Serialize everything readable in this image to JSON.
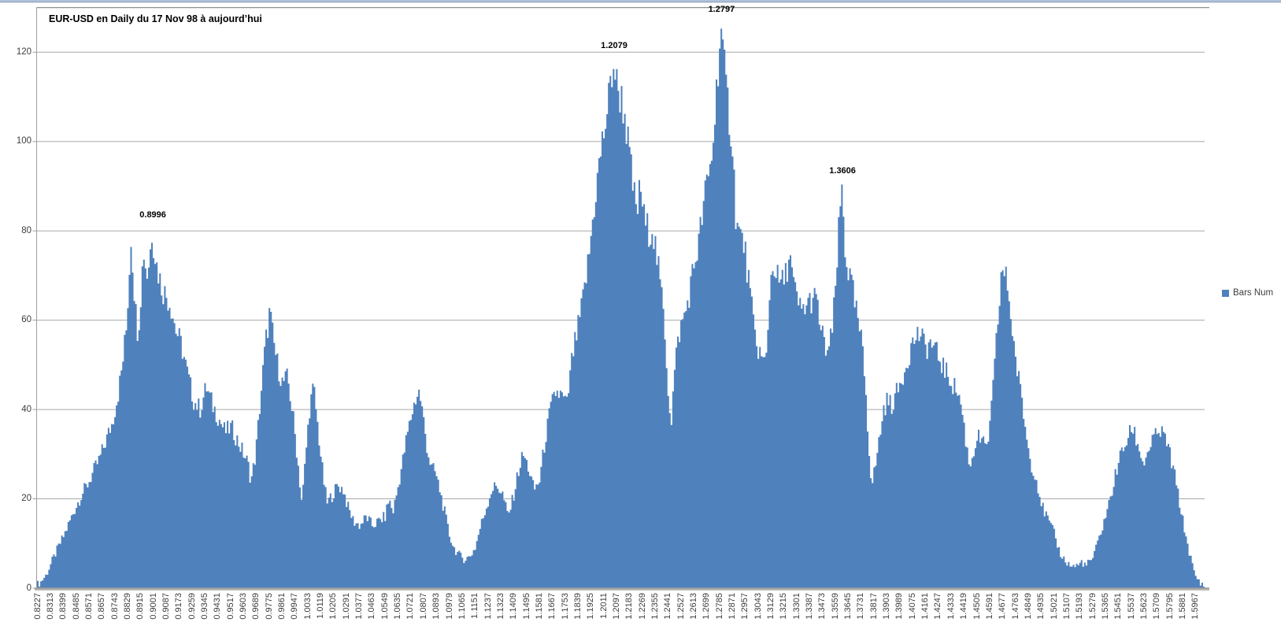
{
  "colors": {
    "bar": "#4F81BD",
    "gridline": "#A8A8A8",
    "axis": "#9E9E9E",
    "axis_shadow": "#C6C6C6",
    "plot_border_top": "#8E8E8E",
    "window_strip": "#AFC2DB",
    "window_strip_line": "#8699B1",
    "tick_text": "#3E3E3E",
    "annotation_text": "#000000"
  },
  "legend": {
    "label": "Bars Num",
    "position": "right",
    "marker_color": "#4F81BD"
  },
  "chart_data": {
    "type": "bar",
    "subtype": "histogram-frequency",
    "title": "EUR-USD en Daily du 17 Nov 98 à aujourd’hui",
    "series_name": "Bars Num",
    "xlabel": "",
    "ylabel": "",
    "grid": "horizontal",
    "legend_position": "right",
    "y_ticks": [
      0,
      20,
      40,
      60,
      80,
      100,
      120
    ],
    "ylim": [
      0,
      130
    ],
    "x_first_bin": 0.8227,
    "x_last_label": 1.5967,
    "x_label_step": 0.0086,
    "bin_width": 0.001075,
    "n_bins": 726,
    "annotations": [
      {
        "text": "0.8996",
        "rate": 0.8996,
        "value": 80
      },
      {
        "text": "1.2079",
        "rate": 1.2079,
        "value": 118
      },
      {
        "text": "1.2797",
        "rate": 1.2797,
        "value": 126
      },
      {
        "text": "1.3606",
        "rate": 1.3606,
        "value": 90
      }
    ],
    "x_tick_labels": [
      "0.8227",
      "0.8313",
      "0.8399",
      "0.8485",
      "0.8571",
      "0.8657",
      "0.8743",
      "0.8829",
      "0.8915",
      "0.9001",
      "0.9087",
      "0.9173",
      "0.9259",
      "0.9345",
      "0.9431",
      "0.9517",
      "0.9603",
      "0.9689",
      "0.9775",
      "0.9861",
      "0.9947",
      "1.0033",
      "1.0119",
      "1.0205",
      "1.0291",
      "1.0377",
      "1.0463",
      "1.0549",
      "1.0635",
      "1.0721",
      "1.0807",
      "1.0893",
      "1.0979",
      "1.1065",
      "1.1151",
      "1.1237",
      "1.1323",
      "1.1409",
      "1.1495",
      "1.1581",
      "1.1667",
      "1.1753",
      "1.1839",
      "1.1925",
      "1.2011",
      "1.2097",
      "1.2183",
      "1.2269",
      "1.2355",
      "1.2441",
      "1.2527",
      "1.2613",
      "1.2699",
      "1.2785",
      "1.2871",
      "1.2957",
      "1.3043",
      "1.3129",
      "1.3215",
      "1.3301",
      "1.3387",
      "1.3473",
      "1.3559",
      "1.3645",
      "1.3731",
      "1.3817",
      "1.3903",
      "1.3989",
      "1.4075",
      "1.4161",
      "1.4247",
      "1.4333",
      "1.4419",
      "1.4505",
      "1.4591",
      "1.4677",
      "1.4763",
      "1.4849",
      "1.4935",
      "1.5021",
      "1.5107",
      "1.5193",
      "1.5279",
      "1.5365",
      "1.5451",
      "1.5537",
      "1.5623",
      "1.5709",
      "1.5795",
      "1.5881",
      "1.5967"
    ],
    "envelope": [
      [
        0.8243,
        1
      ],
      [
        0.829,
        3
      ],
      [
        0.8327,
        6
      ],
      [
        0.8368,
        9
      ],
      [
        0.841,
        12
      ],
      [
        0.8447,
        15
      ],
      [
        0.8484,
        18
      ],
      [
        0.8526,
        21
      ],
      [
        0.8562,
        23
      ],
      [
        0.8604,
        26
      ],
      [
        0.8646,
        29
      ],
      [
        0.8688,
        33
      ],
      [
        0.873,
        37
      ],
      [
        0.8772,
        44
      ],
      [
        0.8798,
        50
      ],
      [
        0.8824,
        58
      ],
      [
        0.884,
        68
      ],
      [
        0.8856,
        79
      ],
      [
        0.8872,
        70
      ],
      [
        0.8887,
        62
      ],
      [
        0.8903,
        57
      ],
      [
        0.8919,
        65
      ],
      [
        0.894,
        76
      ],
      [
        0.8961,
        70
      ],
      [
        0.898,
        74
      ],
      [
        0.8996,
        80
      ],
      [
        0.9029,
        72
      ],
      [
        0.9065,
        67
      ],
      [
        0.9118,
        64
      ],
      [
        0.9155,
        58
      ],
      [
        0.9196,
        54
      ],
      [
        0.9233,
        48
      ],
      [
        0.9275,
        42
      ],
      [
        0.9317,
        40
      ],
      [
        0.9359,
        45
      ],
      [
        0.9401,
        41
      ],
      [
        0.9443,
        38
      ],
      [
        0.9485,
        35
      ],
      [
        0.9527,
        36
      ],
      [
        0.9569,
        33
      ],
      [
        0.961,
        30
      ],
      [
        0.9637,
        28
      ],
      [
        0.9658,
        24
      ],
      [
        0.9689,
        30
      ],
      [
        0.972,
        42
      ],
      [
        0.9752,
        54
      ],
      [
        0.9783,
        62
      ],
      [
        0.9809,
        55
      ],
      [
        0.9836,
        50
      ],
      [
        0.9867,
        46
      ],
      [
        0.9904,
        47
      ],
      [
        0.9941,
        38
      ],
      [
        0.9972,
        28
      ],
      [
        0.9998,
        19
      ],
      [
        1.0024,
        30
      ],
      [
        1.0051,
        41
      ],
      [
        1.0077,
        45
      ],
      [
        1.0108,
        35
      ],
      [
        1.014,
        25
      ],
      [
        1.0166,
        19
      ],
      [
        1.0203,
        21
      ],
      [
        1.0239,
        23
      ],
      [
        1.0276,
        22
      ],
      [
        1.0307,
        18
      ],
      [
        1.0344,
        15
      ],
      [
        1.0386,
        14
      ],
      [
        1.0428,
        16
      ],
      [
        1.047,
        14
      ],
      [
        1.0512,
        15
      ],
      [
        1.0554,
        16
      ],
      [
        1.058,
        20
      ],
      [
        1.0606,
        17
      ],
      [
        1.0637,
        22
      ],
      [
        1.0669,
        28
      ],
      [
        1.07,
        34
      ],
      [
        1.0732,
        39
      ],
      [
        1.0763,
        43
      ],
      [
        1.0784,
        44
      ],
      [
        1.081,
        38
      ],
      [
        1.0837,
        31
      ],
      [
        1.0863,
        27
      ],
      [
        1.0889,
        26
      ],
      [
        1.092,
        22
      ],
      [
        1.0952,
        17
      ],
      [
        1.0983,
        12
      ],
      [
        1.1015,
        9
      ],
      [
        1.1046,
        7.5
      ],
      [
        1.1083,
        6.5
      ],
      [
        1.1119,
        7
      ],
      [
        1.1156,
        9
      ],
      [
        1.1193,
        14
      ],
      [
        1.123,
        18
      ],
      [
        1.1266,
        22
      ],
      [
        1.1303,
        23
      ],
      [
        1.134,
        21
      ],
      [
        1.1376,
        16
      ],
      [
        1.1408,
        20
      ],
      [
        1.1444,
        26
      ],
      [
        1.1476,
        30
      ],
      [
        1.1512,
        27
      ],
      [
        1.1549,
        22
      ],
      [
        1.1586,
        24
      ],
      [
        1.1623,
        33
      ],
      [
        1.1659,
        40
      ],
      [
        1.1696,
        44
      ],
      [
        1.1733,
        43
      ],
      [
        1.1769,
        41
      ],
      [
        1.1806,
        52
      ],
      [
        1.1843,
        58
      ],
      [
        1.1879,
        65
      ],
      [
        1.1916,
        74
      ],
      [
        1.1953,
        86
      ],
      [
        1.1989,
        96
      ],
      [
        1.2026,
        104
      ],
      [
        1.2052,
        110
      ],
      [
        1.2079,
        118
      ],
      [
        1.2105,
        112
      ],
      [
        1.2131,
        110
      ],
      [
        1.2157,
        106
      ],
      [
        1.2183,
        98
      ],
      [
        1.221,
        90
      ],
      [
        1.2236,
        84
      ],
      [
        1.2262,
        90
      ],
      [
        1.2288,
        82
      ],
      [
        1.2314,
        80
      ],
      [
        1.234,
        81
      ],
      [
        1.2367,
        75
      ],
      [
        1.2393,
        68
      ],
      [
        1.2419,
        61
      ],
      [
        1.2445,
        45
      ],
      [
        1.2466,
        37
      ],
      [
        1.2492,
        50
      ],
      [
        1.2519,
        57
      ],
      [
        1.2545,
        60
      ],
      [
        1.2571,
        63
      ],
      [
        1.2597,
        68
      ],
      [
        1.2623,
        73
      ],
      [
        1.2649,
        77
      ],
      [
        1.2676,
        84
      ],
      [
        1.2702,
        90
      ],
      [
        1.2728,
        94
      ],
      [
        1.2754,
        103
      ],
      [
        1.2775,
        115
      ],
      [
        1.2797,
        126
      ],
      [
        1.2812,
        119
      ],
      [
        1.2833,
        112
      ],
      [
        1.2854,
        106
      ],
      [
        1.2875,
        100
      ],
      [
        1.2901,
        82
      ],
      [
        1.2927,
        79
      ],
      [
        1.2953,
        77
      ],
      [
        1.298,
        70
      ],
      [
        1.3006,
        62
      ],
      [
        1.3032,
        55
      ],
      [
        1.3058,
        53
      ],
      [
        1.3084,
        50
      ],
      [
        1.3105,
        52
      ],
      [
        1.3126,
        68
      ],
      [
        1.3152,
        73
      ],
      [
        1.3179,
        69
      ],
      [
        1.3205,
        68
      ],
      [
        1.3231,
        70
      ],
      [
        1.3257,
        75
      ],
      [
        1.3283,
        68
      ],
      [
        1.331,
        64
      ],
      [
        1.3336,
        62
      ],
      [
        1.3362,
        63
      ],
      [
        1.3388,
        64
      ],
      [
        1.3414,
        65
      ],
      [
        1.344,
        64
      ],
      [
        1.3467,
        58
      ],
      [
        1.3493,
        54
      ],
      [
        1.3519,
        53
      ],
      [
        1.3545,
        58
      ],
      [
        1.3566,
        68
      ],
      [
        1.3587,
        80
      ],
      [
        1.3608,
        90
      ],
      [
        1.3629,
        76
      ],
      [
        1.365,
        71
      ],
      [
        1.3671,
        68
      ],
      [
        1.3692,
        64
      ],
      [
        1.3713,
        60
      ],
      [
        1.3739,
        55
      ],
      [
        1.3766,
        45
      ],
      [
        1.3787,
        32
      ],
      [
        1.3808,
        23
      ],
      [
        1.3834,
        28
      ],
      [
        1.386,
        34
      ],
      [
        1.3886,
        40
      ],
      [
        1.3912,
        42
      ],
      [
        1.3939,
        41
      ],
      [
        1.3965,
        43
      ],
      [
        1.3991,
        45
      ],
      [
        1.4017,
        48
      ],
      [
        1.4043,
        51
      ],
      [
        1.407,
        54
      ],
      [
        1.4096,
        56
      ],
      [
        1.4122,
        57
      ],
      [
        1.4148,
        55
      ],
      [
        1.4174,
        54
      ],
      [
        1.4201,
        55
      ],
      [
        1.4227,
        53
      ],
      [
        1.4253,
        52
      ],
      [
        1.4279,
        50
      ],
      [
        1.4305,
        48
      ],
      [
        1.4331,
        47
      ],
      [
        1.4358,
        45
      ],
      [
        1.4384,
        44
      ],
      [
        1.441,
        40
      ],
      [
        1.4436,
        33
      ],
      [
        1.4462,
        27
      ],
      [
        1.4489,
        31
      ],
      [
        1.4515,
        34
      ],
      [
        1.4541,
        33
      ],
      [
        1.4567,
        31
      ],
      [
        1.4593,
        35
      ],
      [
        1.4619,
        45
      ],
      [
        1.4646,
        58
      ],
      [
        1.4677,
        72
      ],
      [
        1.4714,
        68
      ],
      [
        1.474,
        60
      ],
      [
        1.4766,
        52
      ],
      [
        1.4792,
        46
      ],
      [
        1.4819,
        40
      ],
      [
        1.4845,
        33
      ],
      [
        1.4871,
        28
      ],
      [
        1.4897,
        26
      ],
      [
        1.4923,
        22
      ],
      [
        1.4949,
        18
      ],
      [
        1.4976,
        16
      ],
      [
        1.5002,
        14
      ],
      [
        1.5028,
        12
      ],
      [
        1.5054,
        9
      ],
      [
        1.508,
        7
      ],
      [
        1.5106,
        6
      ],
      [
        1.5133,
        5
      ],
      [
        1.5159,
        5
      ],
      [
        1.5185,
        5
      ],
      [
        1.5211,
        6
      ],
      [
        1.5237,
        5
      ],
      [
        1.5264,
        6
      ],
      [
        1.529,
        7
      ],
      [
        1.5316,
        10
      ],
      [
        1.5342,
        13
      ],
      [
        1.5368,
        16
      ],
      [
        1.5394,
        19
      ],
      [
        1.5421,
        23
      ],
      [
        1.5447,
        27
      ],
      [
        1.5473,
        30
      ],
      [
        1.5499,
        32
      ],
      [
        1.5525,
        34
      ],
      [
        1.5551,
        36
      ],
      [
        1.5578,
        33
      ],
      [
        1.5604,
        30
      ],
      [
        1.563,
        28
      ],
      [
        1.5656,
        31
      ],
      [
        1.5682,
        33
      ],
      [
        1.5708,
        34
      ],
      [
        1.5735,
        35
      ],
      [
        1.5761,
        34
      ],
      [
        1.5787,
        32
      ],
      [
        1.5813,
        28
      ],
      [
        1.5839,
        24
      ],
      [
        1.5866,
        19
      ],
      [
        1.5892,
        14
      ],
      [
        1.5918,
        10
      ],
      [
        1.5944,
        6
      ],
      [
        1.5965,
        3
      ],
      [
        1.5986,
        2
      ],
      [
        1.6002,
        1
      ]
    ]
  }
}
